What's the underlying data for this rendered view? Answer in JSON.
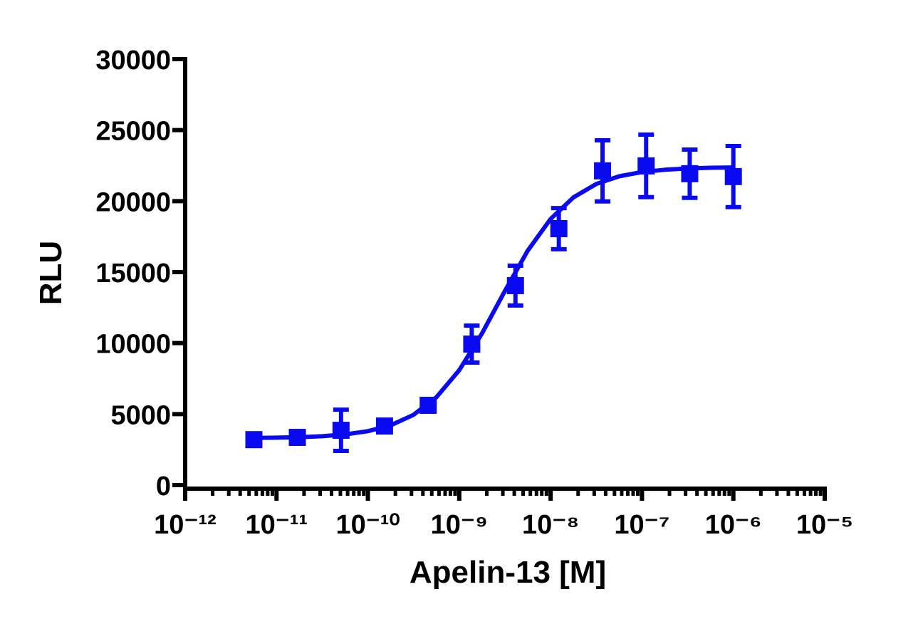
{
  "chart_data": {
    "type": "scatter",
    "x_label": "Apelin-13 [M]",
    "y_label": "RLU",
    "x_scale": "log",
    "x_minor_ticks": true,
    "xlim": [
      1e-12,
      1e-05
    ],
    "xticks": [
      {
        "value": 1e-12,
        "label": "10⁻¹²"
      },
      {
        "value": 1e-11,
        "label": "10⁻¹¹"
      },
      {
        "value": 1e-10,
        "label": "10⁻¹⁰"
      },
      {
        "value": 1e-09,
        "label": "10⁻⁹"
      },
      {
        "value": 1e-08,
        "label": "10⁻⁸"
      },
      {
        "value": 1e-07,
        "label": "10⁻⁷"
      },
      {
        "value": 1e-06,
        "label": "10⁻⁶"
      },
      {
        "value": 1e-05,
        "label": "10⁻⁵"
      }
    ],
    "ylim": [
      0,
      30000
    ],
    "yticks": [
      0,
      5000,
      10000,
      15000,
      20000,
      25000,
      30000
    ],
    "series": [
      {
        "type": "scatter",
        "color": "#0a0af0",
        "x": [
          5.65e-12,
          1.69e-11,
          5.08e-11,
          1.52e-10,
          4.57e-10,
          1.37e-09,
          4.12e-09,
          1.23e-08,
          3.7e-08,
          1.11e-07,
          3.33e-07,
          1e-06
        ],
        "values": [
          3200,
          3360,
          3860,
          4160,
          5620,
          9930,
          14050,
          18060,
          22130,
          22480,
          21930,
          21730
        ],
        "errors": [
          200,
          200,
          1450,
          200,
          200,
          1300,
          1400,
          1450,
          2150,
          2200,
          1700,
          2150
        ]
      },
      {
        "type": "line",
        "color": "#0a0af0",
        "x": [
          5.01e-12,
          1e-11,
          1.78e-11,
          3.16e-11,
          5.62e-11,
          1e-10,
          1.78e-10,
          3.16e-10,
          5.62e-10,
          1e-09,
          1.78e-09,
          3.16e-09,
          5.62e-09,
          1e-08,
          1.78e-08,
          3.16e-08,
          5.62e-08,
          1e-07,
          1.78e-07,
          3.16e-07,
          5.62e-07,
          1e-06
        ],
        "values": [
          3319,
          3340,
          3376,
          3443,
          3567,
          3797,
          4214,
          4951,
          6189,
          8099,
          10703,
          13680,
          16509,
          18741,
          20269,
          21206,
          21747,
          22048,
          22211,
          22300,
          22347,
          22371
        ]
      }
    ]
  }
}
